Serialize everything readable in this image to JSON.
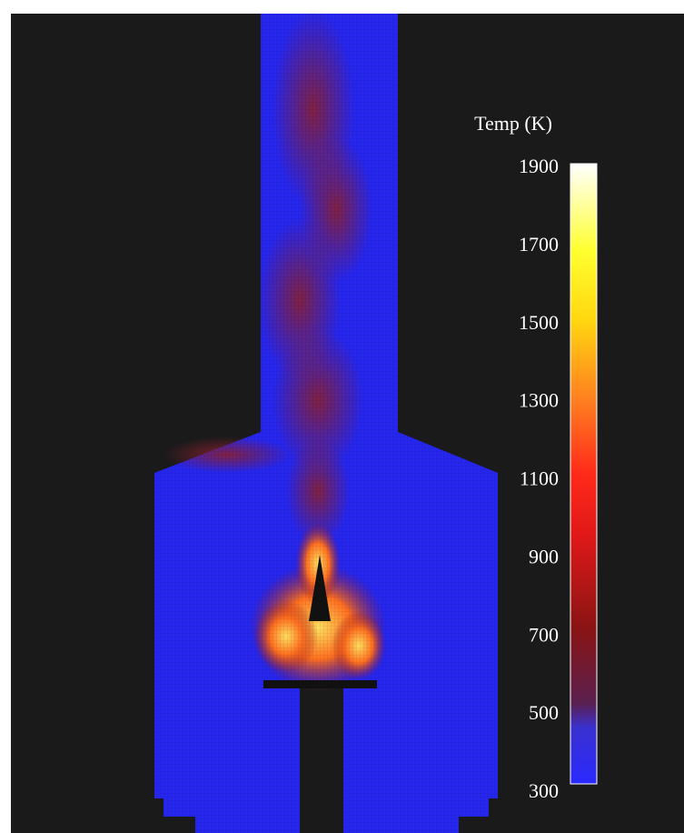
{
  "colorbar": {
    "title": "Temp (K)",
    "lim": [
      300,
      1900
    ],
    "ticks": [
      300,
      500,
      700,
      900,
      1100,
      1300,
      1500,
      1700,
      1900
    ]
  }
}
